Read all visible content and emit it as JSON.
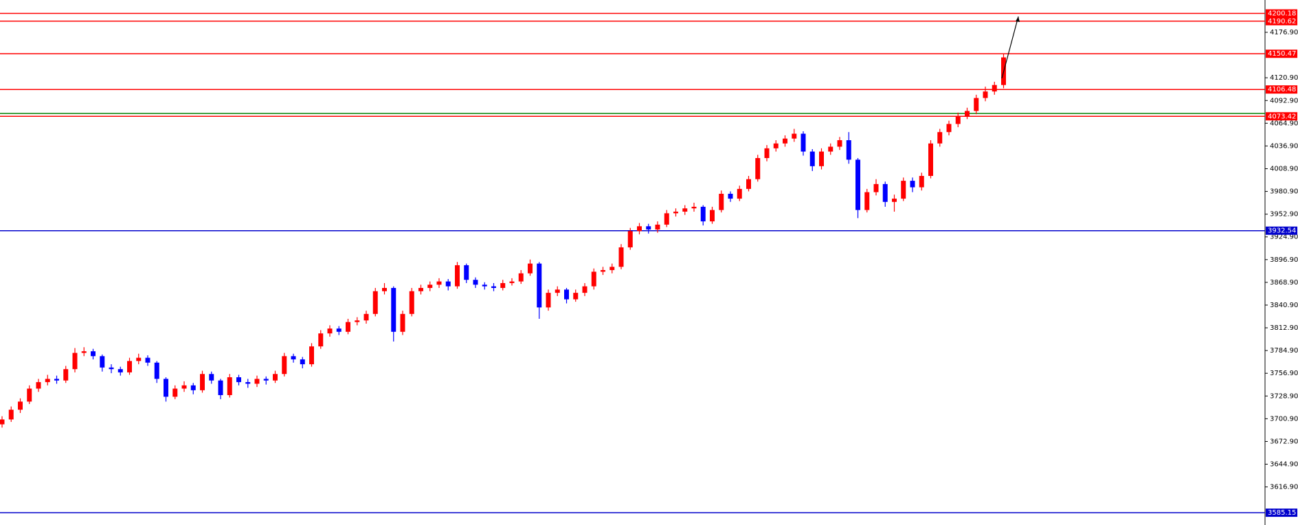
{
  "chart_data": {
    "type": "candlestick",
    "ylim": [
      3570,
      4216.7
    ],
    "yticks": [
      {
        "value": 4176.9,
        "label": "4176.90"
      },
      {
        "value": 4120.9,
        "label": "4120.90"
      },
      {
        "value": 4092.9,
        "label": "4092.90"
      },
      {
        "value": 4064.9,
        "label": "4064.90"
      },
      {
        "value": 4036.9,
        "label": "4036.90"
      },
      {
        "value": 4008.9,
        "label": "4008.90"
      },
      {
        "value": 3980.9,
        "label": "3980.90"
      },
      {
        "value": 3952.9,
        "label": "3952.90"
      },
      {
        "value": 3924.9,
        "label": "3924.90"
      },
      {
        "value": 3896.9,
        "label": "3896.90"
      },
      {
        "value": 3868.9,
        "label": "3868.90"
      },
      {
        "value": 3840.9,
        "label": "3840.90"
      },
      {
        "value": 3812.9,
        "label": "3812.90"
      },
      {
        "value": 3784.9,
        "label": "3784.90"
      },
      {
        "value": 3756.9,
        "label": "3756.90"
      },
      {
        "value": 3728.9,
        "label": "3728.90"
      },
      {
        "value": 3700.9,
        "label": "3700.90"
      },
      {
        "value": 3672.9,
        "label": "3672.90"
      },
      {
        "value": 3644.9,
        "label": "3644.90"
      },
      {
        "value": 3616.9,
        "label": "3616.90"
      }
    ],
    "up_color": "#ff0000",
    "down_color": "#0000ff",
    "levels": [
      {
        "value": 4200.18,
        "color": "#ff0000"
      },
      {
        "value": 4190.62,
        "color": "#ff0000"
      },
      {
        "value": 4150.47,
        "color": "#ff0000"
      },
      {
        "value": 4106.48,
        "color": "#ff0000"
      },
      {
        "value": 4076.9,
        "color": "#008000",
        "labeled": false
      },
      {
        "value": 4073.42,
        "color": "#ff0000"
      },
      {
        "value": 3932.54,
        "color": "#0000cc"
      },
      {
        "value": 3585.15,
        "color": "#0000cc"
      }
    ],
    "open": [
      3694,
      3700,
      3712,
      3722,
      3738,
      3746,
      3750,
      3748,
      3762,
      3782,
      3784,
      3778,
      3764,
      3762,
      3758,
      3772,
      3776,
      3770,
      3750,
      3728,
      3738,
      3742,
      3736,
      3756,
      3748,
      3730,
      3752,
      3746,
      3744,
      3750,
      3748,
      3756,
      3778,
      3774,
      3768,
      3790,
      3806,
      3812,
      3808,
      3820,
      3822,
      3830,
      3858,
      3862,
      3808,
      3830,
      3858,
      3862,
      3866,
      3870,
      3864,
      3890,
      3872,
      3866,
      3864,
      3862,
      3868,
      3870,
      3880,
      3892,
      3838,
      3856,
      3860,
      3848,
      3856,
      3864,
      3882,
      3884,
      3888,
      3912,
      3932,
      3938,
      3934,
      3940,
      3954,
      3956,
      3960,
      3962,
      3944,
      3958,
      3978,
      3972,
      3984,
      3996,
      4022,
      4034,
      4040,
      4046,
      4052,
      4030,
      4012,
      4030,
      4036,
      4044,
      4020,
      3958,
      3980,
      3990,
      3968,
      3972,
      3994,
      3986,
      4000,
      4040,
      4054,
      4064,
      4074,
      4080,
      4096,
      4104,
      4112
    ],
    "high": [
      3704,
      3716,
      3726,
      3742,
      3750,
      3755,
      3754,
      3766,
      3788,
      3789,
      3787,
      3780,
      3768,
      3765,
      3776,
      3781,
      3779,
      3772,
      3752,
      3742,
      3747,
      3745,
      3760,
      3759,
      3750,
      3756,
      3755,
      3750,
      3754,
      3753,
      3760,
      3782,
      3781,
      3777,
      3794,
      3810,
      3816,
      3815,
      3824,
      3826,
      3834,
      3862,
      3868,
      3864,
      3834,
      3862,
      3866,
      3870,
      3874,
      3873,
      3894,
      3892,
      3875,
      3869,
      3868,
      3872,
      3874,
      3884,
      3897,
      3894,
      3860,
      3864,
      3862,
      3860,
      3868,
      3886,
      3888,
      3892,
      3916,
      3936,
      3942,
      3941,
      3944,
      3958,
      3960,
      3964,
      3967,
      3964,
      3962,
      3982,
      3981,
      3988,
      4000,
      4026,
      4038,
      4044,
      4050,
      4058,
      4055,
      4033,
      4034,
      4040,
      4048,
      4054,
      4022,
      3984,
      3996,
      3993,
      3977,
      3998,
      3998,
      4004,
      4044,
      4058,
      4068,
      4078,
      4084,
      4100,
      4110,
      4116,
      4150
    ],
    "low": [
      3690,
      3697,
      3708,
      3719,
      3734,
      3742,
      3744,
      3745,
      3758,
      3778,
      3774,
      3759,
      3757,
      3754,
      3755,
      3768,
      3766,
      3745,
      3722,
      3725,
      3734,
      3731,
      3733,
      3744,
      3725,
      3727,
      3742,
      3739,
      3740,
      3743,
      3745,
      3753,
      3770,
      3763,
      3765,
      3787,
      3802,
      3804,
      3805,
      3816,
      3818,
      3827,
      3854,
      3796,
      3804,
      3827,
      3854,
      3858,
      3862,
      3859,
      3861,
      3868,
      3862,
      3860,
      3858,
      3859,
      3865,
      3867,
      3877,
      3824,
      3834,
      3852,
      3843,
      3845,
      3852,
      3860,
      3878,
      3880,
      3885,
      3909,
      3928,
      3929,
      3930,
      3937,
      3950,
      3952,
      3956,
      3939,
      3941,
      3955,
      3968,
      3969,
      3981,
      3993,
      4018,
      4030,
      4036,
      4042,
      4025,
      4006,
      4008,
      4026,
      4032,
      4015,
      3948,
      3955,
      3976,
      3962,
      3956,
      3969,
      3980,
      3982,
      3997,
      4036,
      4050,
      4060,
      4070,
      4076,
      4092,
      4100,
      4108
    ],
    "close": [
      3700,
      3712,
      3722,
      3738,
      3746,
      3750,
      3748,
      3762,
      3782,
      3784,
      3778,
      3764,
      3762,
      3758,
      3772,
      3776,
      3770,
      3750,
      3728,
      3738,
      3742,
      3736,
      3756,
      3748,
      3730,
      3752,
      3746,
      3744,
      3750,
      3748,
      3756,
      3778,
      3774,
      3768,
      3790,
      3806,
      3812,
      3808,
      3820,
      3822,
      3830,
      3858,
      3862,
      3808,
      3830,
      3858,
      3862,
      3866,
      3870,
      3864,
      3890,
      3872,
      3866,
      3864,
      3862,
      3868,
      3870,
      3880,
      3892,
      3838,
      3856,
      3860,
      3848,
      3856,
      3864,
      3882,
      3884,
      3888,
      3912,
      3932,
      3938,
      3934,
      3940,
      3954,
      3956,
      3960,
      3962,
      3944,
      3958,
      3978,
      3972,
      3984,
      3996,
      4022,
      4034,
      4040,
      4046,
      4052,
      4030,
      4012,
      4030,
      4036,
      4044,
      4020,
      3958,
      3980,
      3990,
      3968,
      3972,
      3994,
      3986,
      4000,
      4040,
      4054,
      4064,
      4074,
      4080,
      4096,
      4104,
      4112,
      4146
    ]
  }
}
